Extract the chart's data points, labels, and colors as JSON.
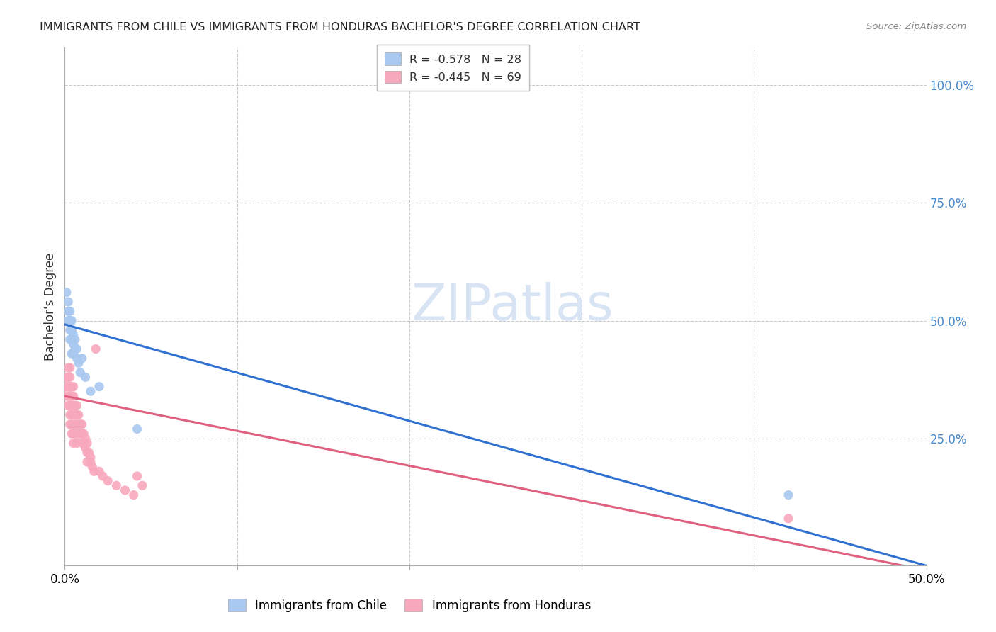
{
  "title": "IMMIGRANTS FROM CHILE VS IMMIGRANTS FROM HONDURAS BACHELOR'S DEGREE CORRELATION CHART",
  "source": "Source: ZipAtlas.com",
  "ylabel": "Bachelor's Degree",
  "right_yticks": [
    "100.0%",
    "75.0%",
    "50.0%",
    "25.0%"
  ],
  "right_ytick_vals": [
    1.0,
    0.75,
    0.5,
    0.25
  ],
  "xlim": [
    0.0,
    0.5
  ],
  "ylim": [
    -0.02,
    1.08
  ],
  "chile_R": -0.578,
  "chile_N": 28,
  "honduras_R": -0.445,
  "honduras_N": 69,
  "chile_color": "#A8C8F0",
  "honduras_color": "#F8A8BC",
  "chile_line_color": "#3070D0",
  "honduras_line_color": "#E06080",
  "watermark_color": "#C8D8EE",
  "chile_x": [
    0.001,
    0.002,
    0.002,
    0.002,
    0.003,
    0.003,
    0.003,
    0.003,
    0.004,
    0.004,
    0.004,
    0.004,
    0.004,
    0.005,
    0.005,
    0.005,
    0.006,
    0.006,
    0.007,
    0.007,
    0.008,
    0.009,
    0.01,
    0.012,
    0.015,
    0.02,
    0.042,
    0.42
  ],
  "chile_y": [
    0.56,
    0.5,
    0.52,
    0.54,
    0.48,
    0.5,
    0.52,
    0.46,
    0.48,
    0.5,
    0.46,
    0.48,
    0.43,
    0.47,
    0.45,
    0.43,
    0.44,
    0.46,
    0.44,
    0.42,
    0.41,
    0.39,
    0.42,
    0.38,
    0.35,
    0.36,
    0.27,
    0.13
  ],
  "honduras_x": [
    0.001,
    0.001,
    0.001,
    0.002,
    0.002,
    0.002,
    0.002,
    0.002,
    0.003,
    0.003,
    0.003,
    0.003,
    0.003,
    0.003,
    0.003,
    0.003,
    0.003,
    0.004,
    0.004,
    0.004,
    0.004,
    0.004,
    0.004,
    0.005,
    0.005,
    0.005,
    0.005,
    0.005,
    0.005,
    0.005,
    0.006,
    0.006,
    0.006,
    0.006,
    0.007,
    0.007,
    0.007,
    0.007,
    0.007,
    0.008,
    0.008,
    0.008,
    0.009,
    0.009,
    0.01,
    0.01,
    0.01,
    0.011,
    0.011,
    0.012,
    0.012,
    0.013,
    0.013,
    0.013,
    0.014,
    0.015,
    0.015,
    0.016,
    0.017,
    0.018,
    0.02,
    0.022,
    0.025,
    0.03,
    0.035,
    0.04,
    0.42,
    0.042,
    0.045
  ],
  "honduras_y": [
    0.38,
    0.36,
    0.34,
    0.4,
    0.38,
    0.36,
    0.34,
    0.32,
    0.4,
    0.38,
    0.36,
    0.34,
    0.32,
    0.3,
    0.28,
    0.36,
    0.34,
    0.36,
    0.34,
    0.32,
    0.3,
    0.28,
    0.26,
    0.36,
    0.34,
    0.32,
    0.3,
    0.28,
    0.26,
    0.24,
    0.32,
    0.3,
    0.28,
    0.26,
    0.32,
    0.3,
    0.28,
    0.26,
    0.24,
    0.3,
    0.28,
    0.26,
    0.28,
    0.26,
    0.28,
    0.26,
    0.24,
    0.26,
    0.24,
    0.25,
    0.23,
    0.24,
    0.22,
    0.2,
    0.22,
    0.21,
    0.2,
    0.19,
    0.18,
    0.44,
    0.18,
    0.17,
    0.16,
    0.15,
    0.14,
    0.13,
    0.08,
    0.17,
    0.15
  ],
  "chile_line_x0": 0.0,
  "chile_line_y0": 0.492,
  "chile_line_x1": 0.5,
  "chile_line_y1": -0.02,
  "honduras_line_x0": 0.0,
  "honduras_line_y0": 0.34,
  "honduras_line_x1": 0.5,
  "honduras_line_y1": -0.03
}
